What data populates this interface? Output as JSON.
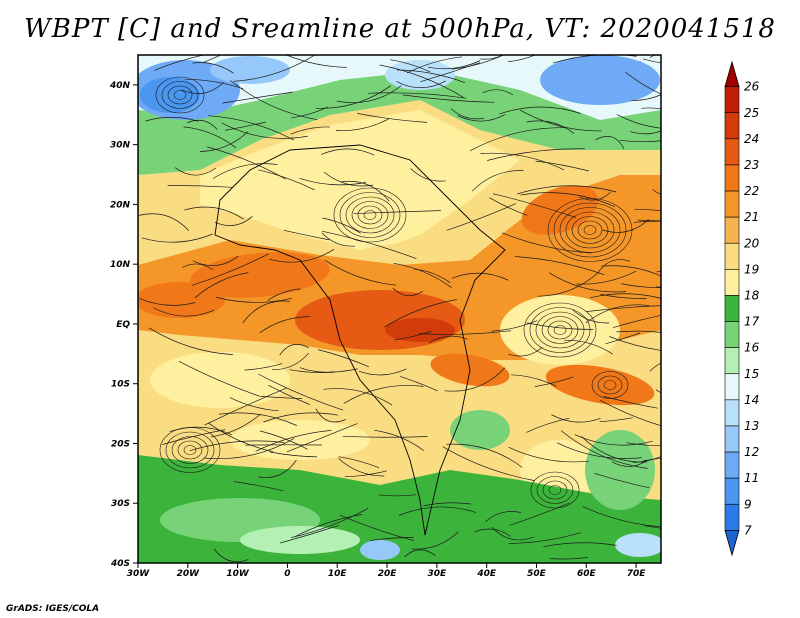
{
  "title": "WBPT [C] and Sreamline at 500hPa, VT: 2020041518",
  "credit": "GrADS: IGES/COLA",
  "map": {
    "variable": "Wet-bulb potential temperature",
    "units": "C",
    "level": "500hPa",
    "valid_time": "2020041518",
    "lon_range": [
      -30,
      75
    ],
    "lat_range": [
      -40,
      45
    ],
    "lat_ticks": [
      {
        "value": 40,
        "label": "40N"
      },
      {
        "value": 30,
        "label": "30N"
      },
      {
        "value": 20,
        "label": "20N"
      },
      {
        "value": 10,
        "label": "10N"
      },
      {
        "value": 0,
        "label": "EQ"
      },
      {
        "value": -10,
        "label": "10S"
      },
      {
        "value": -20,
        "label": "20S"
      },
      {
        "value": -30,
        "label": "30S"
      },
      {
        "value": -40,
        "label": "40S"
      }
    ],
    "lon_ticks": [
      {
        "value": -30,
        "label": "30W"
      },
      {
        "value": -20,
        "label": "20W"
      },
      {
        "value": -10,
        "label": "10W"
      },
      {
        "value": 0,
        "label": "0"
      },
      {
        "value": 10,
        "label": "10E"
      },
      {
        "value": 20,
        "label": "20E"
      },
      {
        "value": 30,
        "label": "30E"
      },
      {
        "value": 40,
        "label": "40E"
      },
      {
        "value": 50,
        "label": "50E"
      },
      {
        "value": 60,
        "label": "60E"
      },
      {
        "value": 70,
        "label": "70E"
      }
    ]
  },
  "colorbar": {
    "levels": [
      "7",
      "9",
      "11",
      "12",
      "13",
      "14",
      "15",
      "16",
      "17",
      "18",
      "19",
      "20",
      "21",
      "22",
      "23",
      "24",
      "25",
      "26"
    ],
    "colors": [
      "#1e64d2",
      "#2d7be6",
      "#4b96f0",
      "#6eaaf5",
      "#96c8fa",
      "#b9e1fa",
      "#e6f8fa",
      "#b4f0b4",
      "#78d278",
      "#3cb43c",
      "#fff0a0",
      "#fadc82",
      "#f5b450",
      "#f59628",
      "#f07818",
      "#e65a14",
      "#d23c0a",
      "#be1e05",
      "#a00000"
    ]
  }
}
